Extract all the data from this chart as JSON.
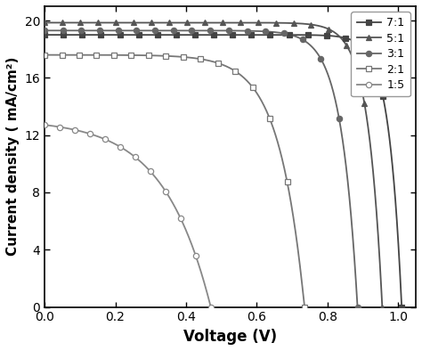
{
  "title": "",
  "xlabel": "Voltage (V)",
  "ylabel": "Current density ( mA/cm²)",
  "xlim": [
    0,
    1.05
  ],
  "ylim": [
    0,
    21
  ],
  "yticks": [
    0,
    4,
    8,
    12,
    16,
    20
  ],
  "xticks": [
    0.0,
    0.2,
    0.4,
    0.6,
    0.8,
    1.0
  ],
  "series": [
    {
      "label": "7:1",
      "Jsc": 19.0,
      "Voc": 1.01,
      "steepness": 28.0,
      "marker": "s",
      "filled": true,
      "color": "#444444",
      "n_markers": 20
    },
    {
      "label": "5:1",
      "Jsc": 19.85,
      "Voc": 0.955,
      "steepness": 25.0,
      "marker": "^",
      "filled": true,
      "color": "#555555",
      "n_markers": 20
    },
    {
      "label": "3:1",
      "Jsc": 19.3,
      "Voc": 0.885,
      "steepness": 22.0,
      "marker": "o",
      "filled": true,
      "color": "#666666",
      "n_markers": 18
    },
    {
      "label": "2:1",
      "Jsc": 17.6,
      "Voc": 0.735,
      "steepness": 14.0,
      "marker": "s",
      "filled": false,
      "color": "#777777",
      "n_markers": 16
    },
    {
      "label": "1:5",
      "Jsc": 13.1,
      "Voc": 0.47,
      "steepness": 7.5,
      "marker": "o",
      "filled": false,
      "color": "#888888",
      "n_markers": 12
    }
  ],
  "background_color": "#ffffff"
}
